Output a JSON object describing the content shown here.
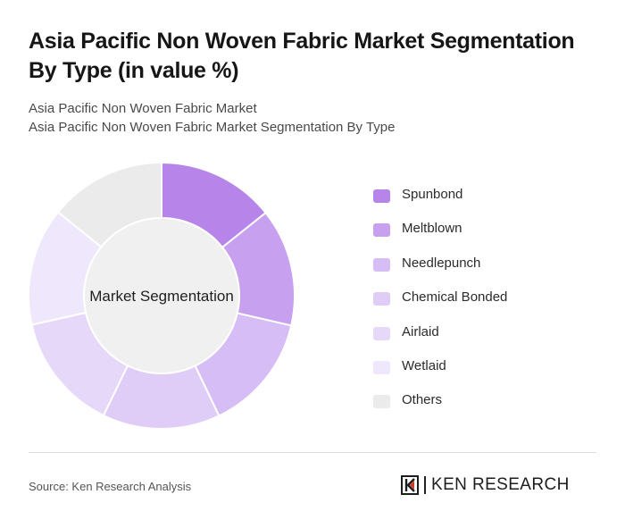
{
  "header": {
    "title": "Asia Pacific Non Woven Fabric Market Segmentation By Type (in value %)",
    "subtitle_1": "Asia Pacific Non Woven Fabric Market",
    "subtitle_2": "Asia Pacific Non Woven Fabric Market Segmentation By Type"
  },
  "chart_data": {
    "type": "pie",
    "variant": "donut",
    "center_label": "Market Segmentation",
    "categories": [
      "Spunbond",
      "Meltblown",
      "Needlepunch",
      "Chemical Bonded",
      "Airlaid",
      "Wetlaid",
      "Others"
    ],
    "values": [
      14.3,
      14.3,
      14.3,
      14.3,
      14.3,
      14.3,
      14.2
    ],
    "colors": [
      "#b785ea",
      "#c7a0f0",
      "#d7bdf5",
      "#e0cdf7",
      "#e6d8f9",
      "#efe7fb",
      "#ebebeb"
    ],
    "legend_position": "right"
  },
  "footer": {
    "source": "Source: Ken Research Analysis",
    "brand": "KEN RESEARCH",
    "brand_icon": "ken-research-logo-icon"
  }
}
